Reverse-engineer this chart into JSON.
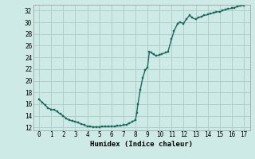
{
  "title": "",
  "xlabel": "Humidex (Indice chaleur)",
  "ylabel": "",
  "background_color": "#ceeae6",
  "grid_color": "#b0ceca",
  "line_color": "#1a6b5e",
  "line_width": 1.0,
  "marker": "s",
  "marker_size": 2.0,
  "xlim": [
    -0.5,
    17.5
  ],
  "ylim": [
    11.5,
    33.0
  ],
  "yticks": [
    12,
    14,
    16,
    18,
    20,
    22,
    24,
    26,
    28,
    30,
    32
  ],
  "xticks": [
    0,
    1,
    2,
    3,
    4,
    5,
    6,
    7,
    8,
    9,
    10,
    11,
    12,
    13,
    14,
    15,
    16,
    17
  ],
  "x": [
    0.0,
    0.25,
    0.5,
    0.75,
    1.0,
    1.25,
    1.5,
    1.75,
    2.0,
    2.25,
    2.5,
    2.75,
    3.0,
    3.25,
    3.5,
    3.75,
    4.0,
    4.25,
    4.5,
    4.75,
    5.0,
    5.25,
    5.5,
    5.75,
    6.0,
    6.25,
    6.5,
    6.75,
    7.0,
    7.25,
    7.5,
    7.75,
    8.0,
    8.1,
    8.2,
    8.4,
    8.6,
    8.8,
    9.0,
    9.15,
    9.3,
    9.5,
    9.7,
    10.0,
    10.2,
    10.5,
    10.7,
    11.0,
    11.2,
    11.5,
    11.7,
    12.0,
    12.2,
    12.5,
    12.7,
    13.0,
    13.2,
    13.5,
    13.7,
    14.0,
    14.2,
    14.5,
    14.7,
    15.0,
    15.2,
    15.5,
    15.7,
    16.0,
    16.2,
    16.5,
    16.7,
    17.0
  ],
  "y": [
    16.8,
    16.3,
    15.8,
    15.3,
    15.1,
    15.0,
    14.7,
    14.3,
    14.0,
    13.5,
    13.3,
    13.1,
    13.0,
    12.8,
    12.6,
    12.4,
    12.2,
    12.15,
    12.1,
    12.1,
    12.1,
    12.15,
    12.15,
    12.2,
    12.2,
    12.2,
    12.25,
    12.3,
    12.4,
    12.5,
    12.7,
    13.0,
    13.3,
    14.5,
    16.0,
    18.5,
    20.5,
    21.8,
    22.3,
    25.0,
    24.8,
    24.5,
    24.3,
    24.4,
    24.6,
    24.8,
    25.0,
    27.2,
    28.5,
    29.8,
    30.0,
    29.8,
    30.5,
    31.2,
    30.8,
    30.5,
    30.8,
    31.0,
    31.2,
    31.3,
    31.5,
    31.6,
    31.8,
    31.8,
    32.0,
    32.2,
    32.3,
    32.4,
    32.5,
    32.7,
    32.8,
    32.9
  ]
}
